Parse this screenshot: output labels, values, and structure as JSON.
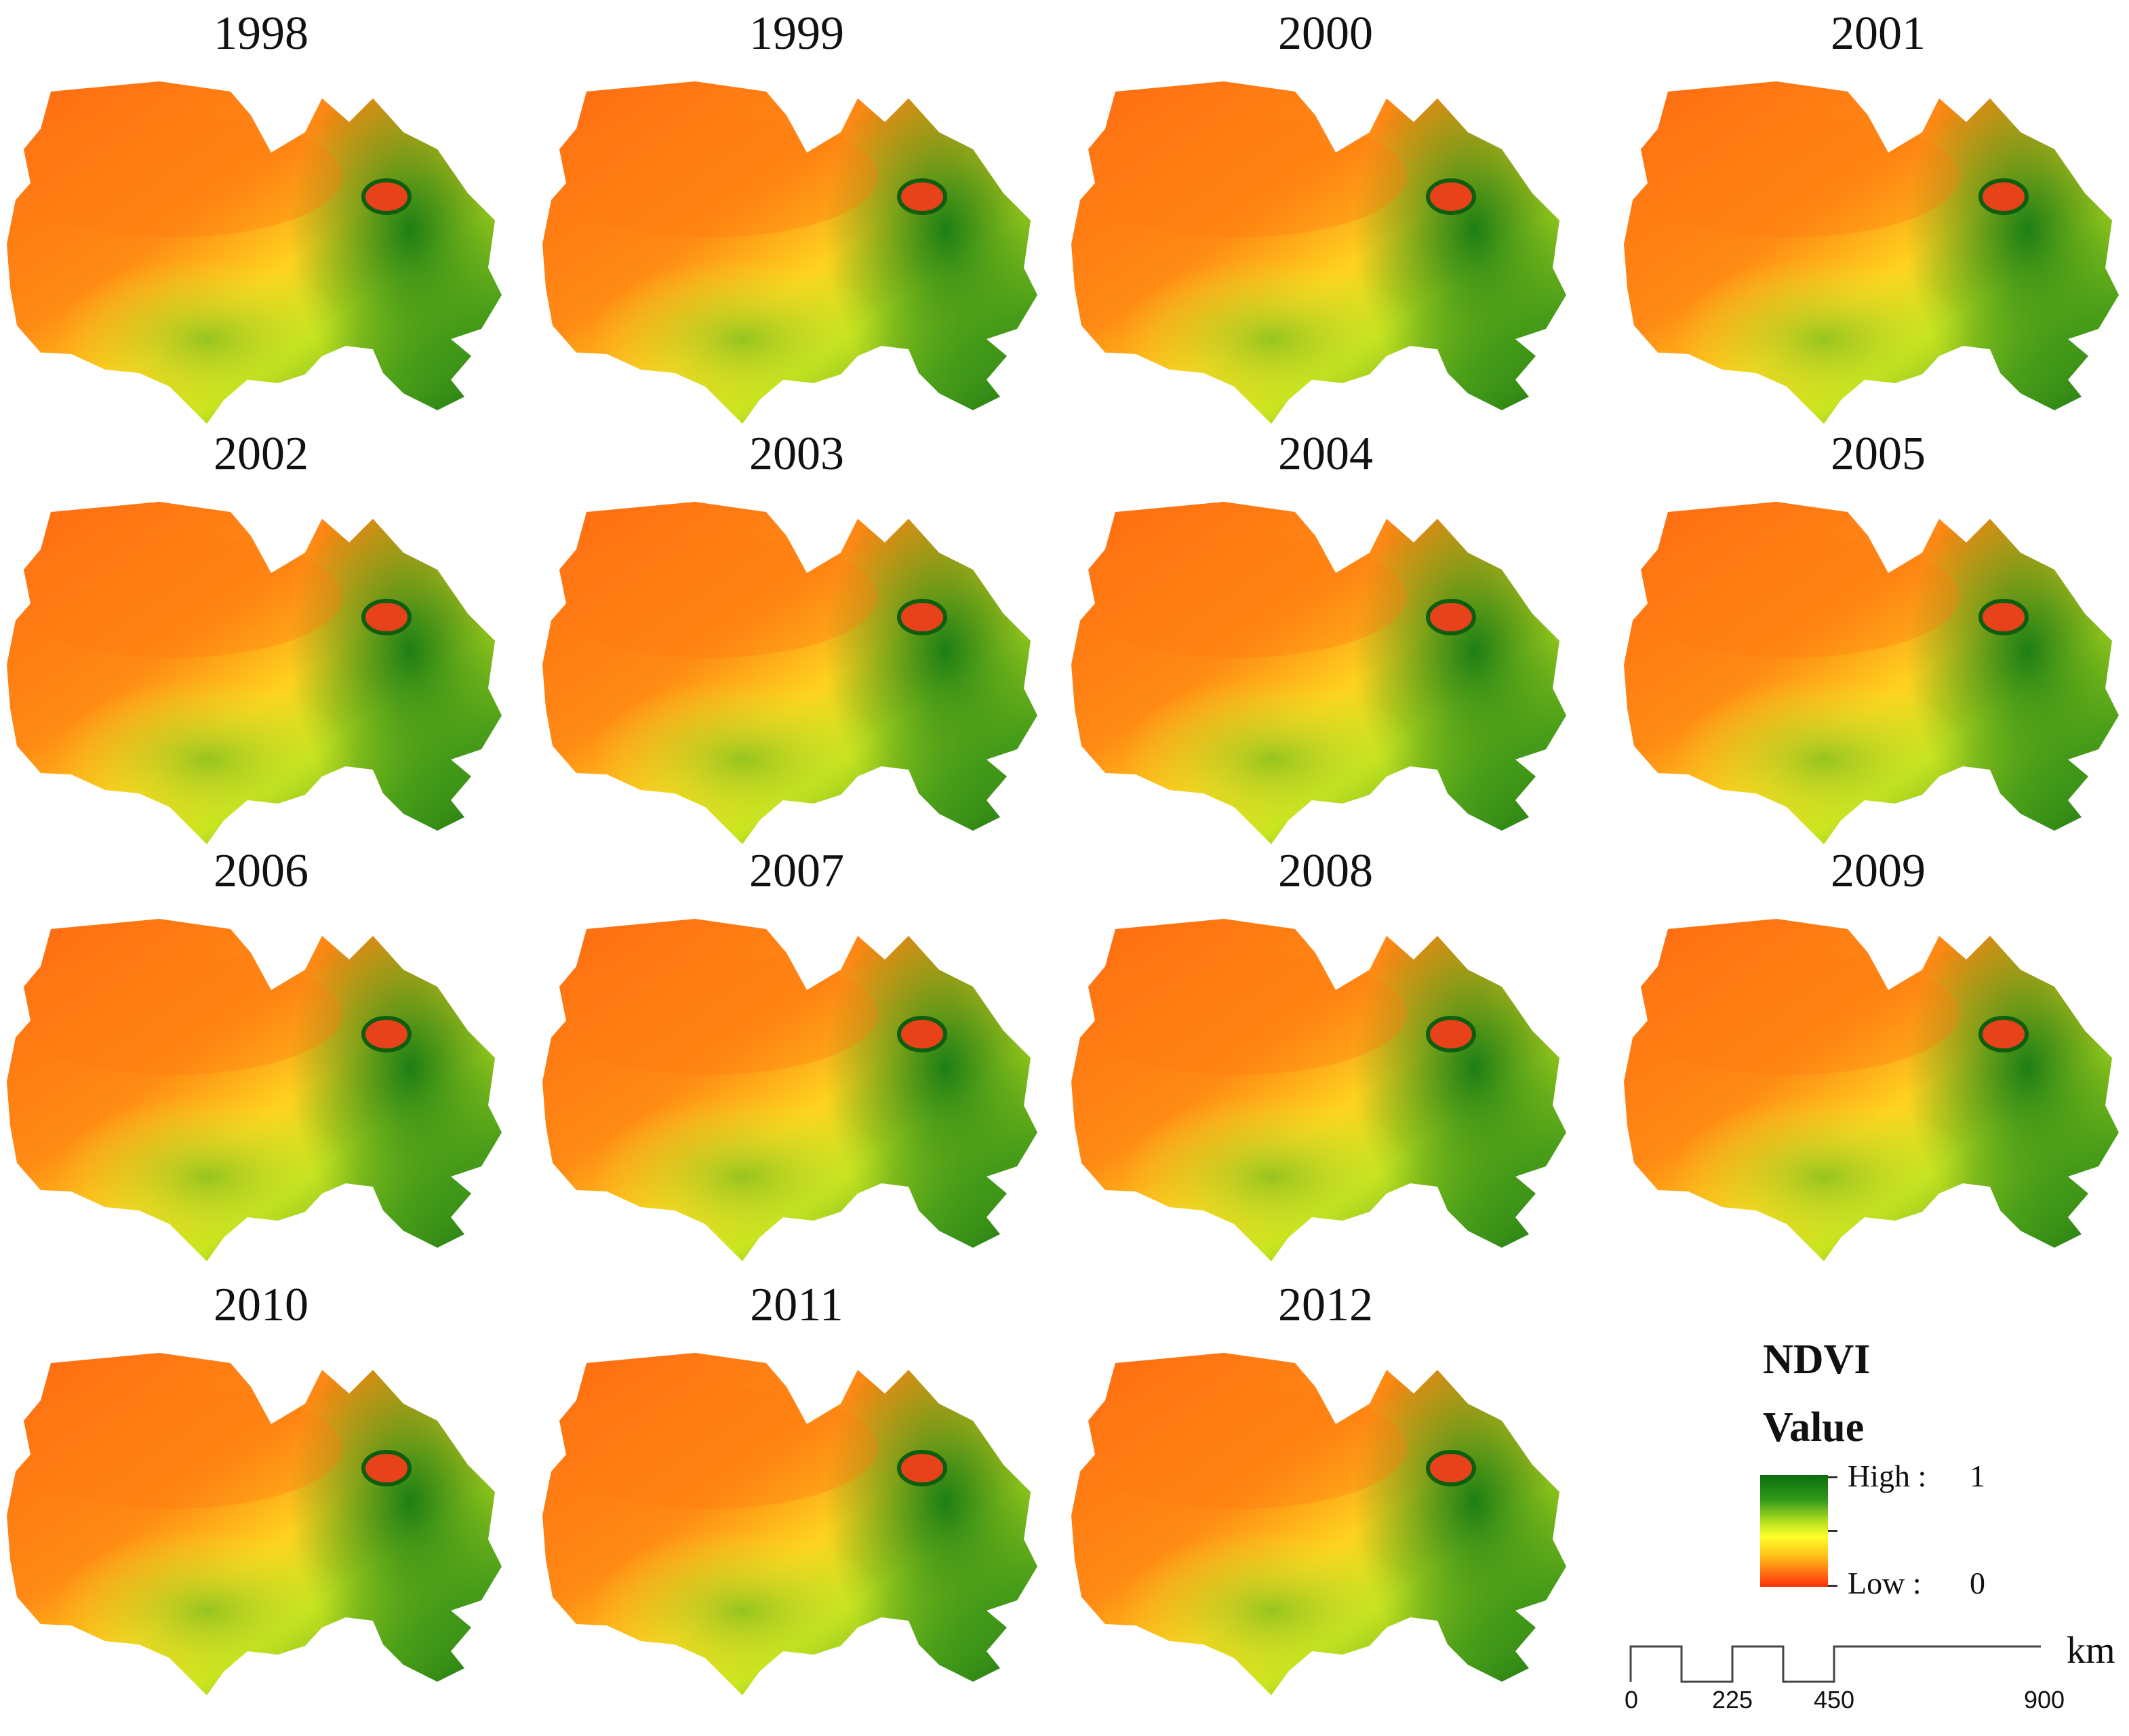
{
  "figure": {
    "years": [
      "1998",
      "1999",
      "2000",
      "2001",
      "2002",
      "2003",
      "2004",
      "2005",
      "2006",
      "2007",
      "2008",
      "2009",
      "2010",
      "2011",
      "2012"
    ]
  },
  "legend": {
    "title": "NDVI",
    "subtitle": "Value",
    "high_label": "High :",
    "high_value": "1",
    "low_label": "Low :",
    "low_value": "0",
    "colors": {
      "high": "#0b6b0b",
      "mid": "#ffff2a",
      "low": "#ff2d0c"
    }
  },
  "scale_bar": {
    "unit": "km",
    "ticks": [
      "0",
      "225",
      "450",
      "900"
    ]
  }
}
